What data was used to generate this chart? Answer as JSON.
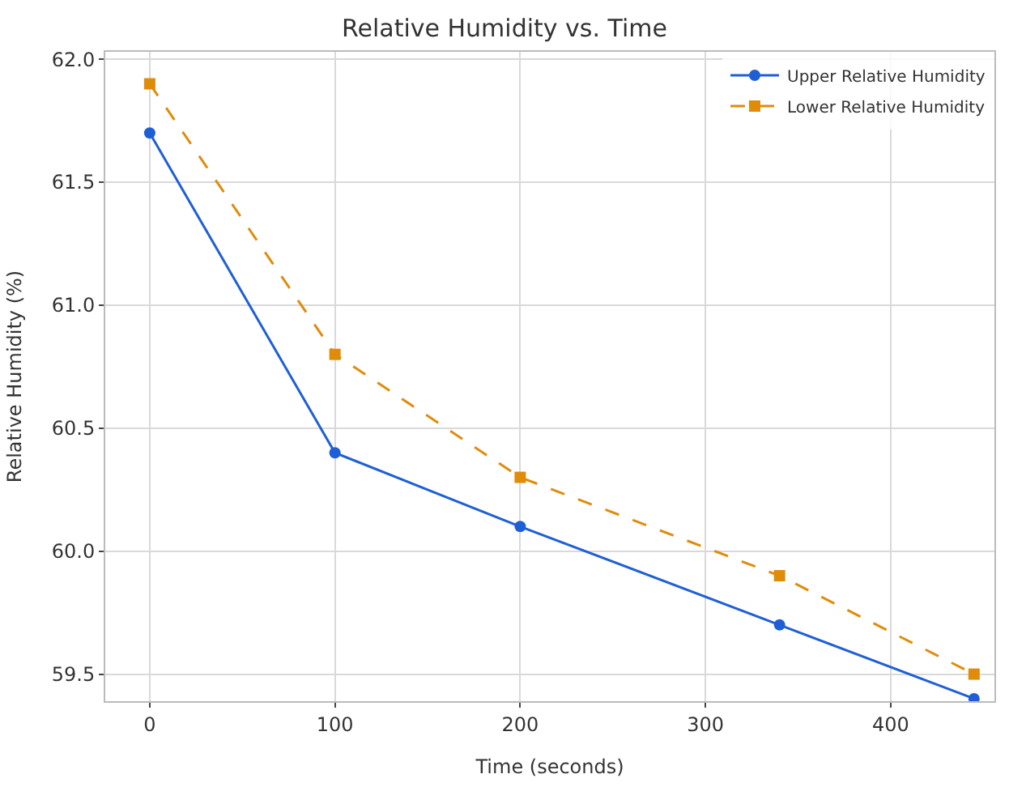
{
  "chart_data": {
    "type": "line",
    "title": "Relative Humidity vs. Time",
    "xlabel": "Time (seconds)",
    "ylabel": "Relative Humidity (%)",
    "x": [
      0,
      100,
      200,
      340,
      445
    ],
    "series": [
      {
        "name": "Upper Relative Humidity",
        "color": "#1f5fd6",
        "values": [
          61.7,
          60.4,
          60.1,
          59.7,
          59.4
        ],
        "marker": "circle",
        "line_style": "solid"
      },
      {
        "name": "Lower Relative Humidity",
        "color": "#e08c0b",
        "values": [
          61.9,
          60.8,
          60.3,
          59.9,
          59.5
        ],
        "marker": "square",
        "line_style": "dashed"
      }
    ],
    "xlim": [
      -24,
      456
    ],
    "xticks": [
      0,
      100,
      200,
      300,
      400
    ],
    "ylim": [
      59.39,
      62.03
    ],
    "yticks": [
      59.5,
      {
        "value": 60,
        "label": "60.0"
      },
      60.5,
      {
        "value": 61,
        "label": "61.0"
      },
      61.5,
      {
        "value": 62,
        "label": "62.0"
      }
    ],
    "grid": true,
    "legend": "top right"
  }
}
